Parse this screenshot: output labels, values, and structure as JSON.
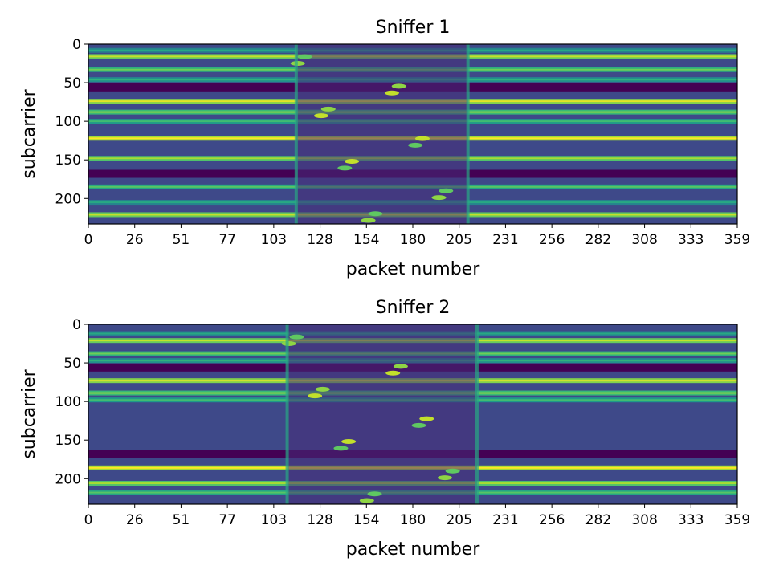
{
  "chart_data": [
    {
      "type": "heatmap",
      "title": "Sniffer 1",
      "xlabel": "packet number",
      "ylabel": "subcarrier",
      "xticks": [
        "0",
        "26",
        "51",
        "77",
        "103",
        "128",
        "154",
        "180",
        "205",
        "231",
        "256",
        "282",
        "308",
        "333",
        "359"
      ],
      "yticks": [
        "0",
        "50",
        "100",
        "150",
        "200"
      ],
      "xlim": [
        0,
        359
      ],
      "ylim": [
        0,
        233
      ],
      "colormap": "viridis",
      "disturbance_region": [
        115,
        210
      ],
      "bright_bands": [
        8,
        16,
        33,
        46,
        74,
        88,
        100,
        122,
        148,
        185,
        205,
        221
      ],
      "dark_bands": [
        56,
        168
      ]
    },
    {
      "type": "heatmap",
      "title": "Sniffer 2",
      "xlabel": "packet number",
      "ylabel": "subcarrier",
      "xticks": [
        "0",
        "26",
        "51",
        "77",
        "103",
        "128",
        "154",
        "180",
        "205",
        "231",
        "256",
        "282",
        "308",
        "333",
        "359"
      ],
      "yticks": [
        "0",
        "50",
        "100",
        "150",
        "200"
      ],
      "xlim": [
        0,
        359
      ],
      "ylim": [
        0,
        233
      ],
      "colormap": "viridis",
      "disturbance_region": [
        110,
        215
      ],
      "bright_bands": [
        12,
        21,
        38,
        47,
        73,
        89,
        98,
        186,
        206,
        218
      ],
      "dark_bands": [
        56,
        168
      ]
    }
  ]
}
